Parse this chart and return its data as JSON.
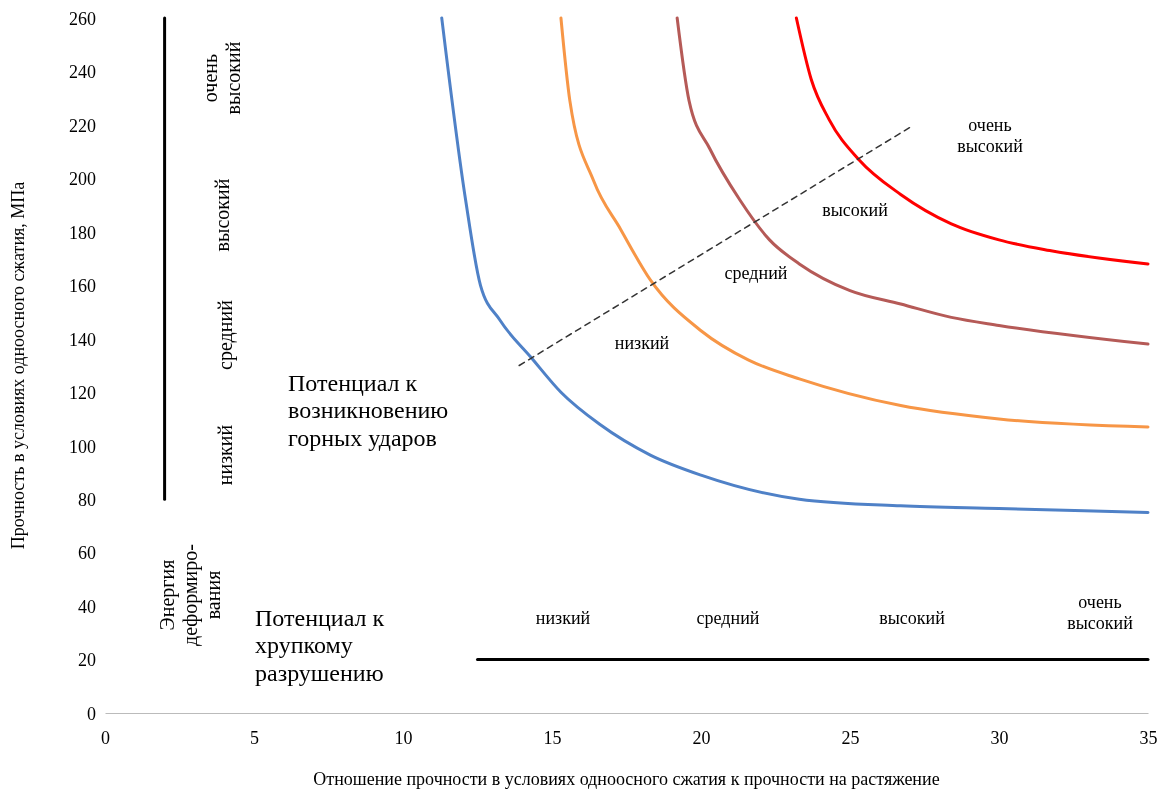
{
  "chart_data": {
    "type": "line",
    "xlabel": "Отношение прочности в условиях одноосного сжатия к прочности на растяжение",
    "ylabel": "Прочность в условиях одноосного сжатия, МПа",
    "xlim": [
      0,
      35
    ],
    "xticks": [
      0,
      5,
      10,
      15,
      20,
      25,
      30,
      35
    ],
    "ylim": [
      0,
      260
    ],
    "yticks": [
      0,
      20,
      40,
      60,
      80,
      100,
      120,
      140,
      160,
      180,
      200,
      220,
      240,
      260
    ],
    "grid": false,
    "marker": "none",
    "series": [
      {
        "color": "#4f81c7",
        "x": [
          11.3,
          12.1,
          12.6,
          13.25,
          14.3,
          15.3,
          16.6,
          18.3,
          20,
          23.3,
          26.7,
          30,
          35
        ],
        "values": [
          260,
          192,
          160,
          147,
          133,
          120,
          108,
          96.5,
          89,
          80,
          77.5,
          76.5,
          75
        ]
      },
      {
        "color": "#f79646",
        "x": [
          15.3,
          15.6,
          16.4,
          17.3,
          18.3,
          20,
          21.6,
          23.3,
          26.7,
          30,
          35
        ],
        "values": [
          260,
          229,
          199,
          181,
          162,
          143,
          132,
          125,
          115,
          110,
          107
        ]
      },
      {
        "color": "#b55a57",
        "x": [
          19.2,
          19.6,
          20.3,
          21.3,
          22.3,
          23.3,
          25,
          26.7,
          28.4,
          30,
          35
        ],
        "values": [
          260,
          229,
          211,
          192,
          177,
          168,
          158,
          153,
          148,
          145,
          138
        ]
      },
      {
        "color": "#ff0000",
        "x": [
          23.2,
          23.7,
          24.3,
          25.3,
          26.7,
          28.4,
          30,
          31.7,
          35
        ],
        "values": [
          260,
          237,
          222,
          207,
          194,
          183,
          177,
          173,
          168
        ]
      },
      {
        "color": "#333333",
        "line_style": "dashed",
        "x": [
          13.9,
          27
        ],
        "values": [
          130,
          219
        ]
      },
      {
        "color": "#000000",
        "x": [
          2,
          2
        ],
        "values": [
          80,
          260
        ]
      },
      {
        "color": "#000000",
        "x": [
          12.5,
          35
        ],
        "values": [
          20,
          20
        ]
      }
    ],
    "annotations": [
      "низкий",
      "средний",
      "высокий",
      "очень\nвысокий",
      "Энергия\nдеформиро-\nвания",
      "Потенциал к\nвозникновению\nгорных ударов",
      "Потенциал к\nхрупкому\nразрушению",
      "низкий",
      "средний",
      "высокий",
      "очень\nвысокий",
      "низкий",
      "средний",
      "высокий",
      "очень\nвысокий"
    ]
  }
}
